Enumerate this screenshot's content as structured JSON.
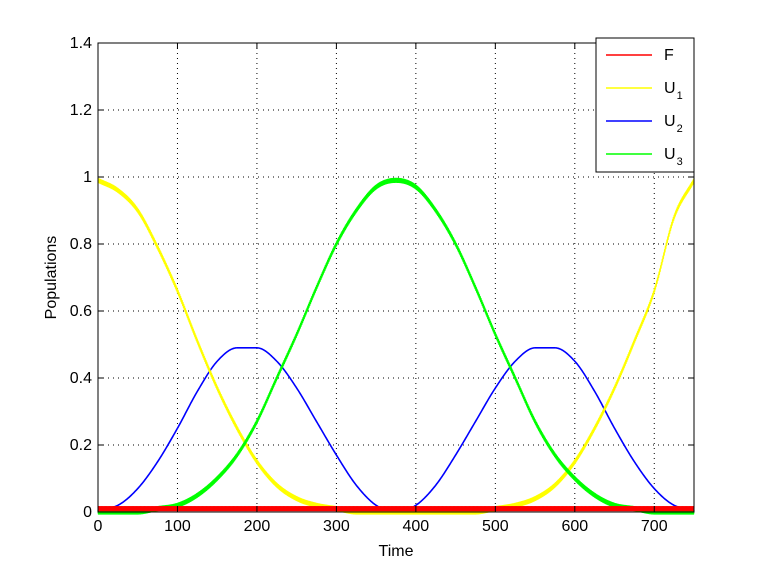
{
  "chart_data": {
    "type": "line",
    "title": "",
    "xlabel": "Time",
    "ylabel": "Populations",
    "xlim": [
      0,
      750
    ],
    "ylim": [
      0,
      1.4
    ],
    "xticks": [
      0,
      100,
      200,
      300,
      400,
      500,
      600,
      700
    ],
    "xtick_labels": [
      "0",
      "100",
      "200",
      "300",
      "400",
      "500",
      "600",
      "700"
    ],
    "yticks": [
      0,
      0.2,
      0.4,
      0.6,
      0.8,
      1,
      1.2,
      1.4
    ],
    "ytick_labels": [
      "0",
      "0.2",
      "0.4",
      "0.6",
      "0.8",
      "1",
      "1.2",
      "1.4"
    ],
    "grid": true,
    "legend_position": "top-right",
    "x": [
      0,
      25,
      50,
      75,
      100,
      125,
      150,
      175,
      200,
      225,
      250,
      275,
      300,
      325,
      350,
      375,
      400,
      425,
      450,
      475,
      500,
      525,
      550,
      575,
      600,
      625,
      650,
      675,
      700,
      725,
      750
    ],
    "series": [
      {
        "name": "F",
        "color": "#ff0000",
        "fine_oscillation": true,
        "values": [
          0.01,
          0.01,
          0.01,
          0.01,
          0.01,
          0.01,
          0.01,
          0.01,
          0.01,
          0.01,
          0.01,
          0.01,
          0.01,
          0.01,
          0.01,
          0.01,
          0.01,
          0.01,
          0.01,
          0.01,
          0.01,
          0.01,
          0.01,
          0.01,
          0.01,
          0.01,
          0.01,
          0.01,
          0.01,
          0.01,
          0.01
        ]
      },
      {
        "name": "U",
        "subscript": "1",
        "color": "#ffff00",
        "fine_oscillation": true,
        "values": [
          0.99,
          0.96,
          0.9,
          0.79,
          0.66,
          0.51,
          0.37,
          0.25,
          0.15,
          0.08,
          0.04,
          0.02,
          0.01,
          0.0,
          0.0,
          0.0,
          0.0,
          0.0,
          0.0,
          0.0,
          0.01,
          0.02,
          0.04,
          0.08,
          0.15,
          0.25,
          0.37,
          0.51,
          0.66,
          0.88,
          0.99
        ]
      },
      {
        "name": "U",
        "subscript": "2",
        "color": "#0000ff",
        "fine_oscillation": false,
        "values": [
          0.01,
          0.02,
          0.07,
          0.15,
          0.25,
          0.36,
          0.45,
          0.49,
          0.49,
          0.45,
          0.37,
          0.27,
          0.17,
          0.08,
          0.02,
          0.0,
          0.02,
          0.08,
          0.17,
          0.27,
          0.37,
          0.45,
          0.49,
          0.49,
          0.45,
          0.36,
          0.25,
          0.15,
          0.07,
          0.02,
          0.01
        ]
      },
      {
        "name": "U",
        "subscript": "3",
        "color": "#00ff00",
        "fine_oscillation": true,
        "values": [
          0.0,
          0.0,
          0.0,
          0.01,
          0.02,
          0.05,
          0.1,
          0.17,
          0.27,
          0.4,
          0.53,
          0.67,
          0.8,
          0.9,
          0.97,
          0.99,
          0.97,
          0.9,
          0.8,
          0.67,
          0.53,
          0.4,
          0.27,
          0.17,
          0.1,
          0.05,
          0.02,
          0.01,
          0.0,
          0.0,
          0.0
        ]
      }
    ]
  }
}
